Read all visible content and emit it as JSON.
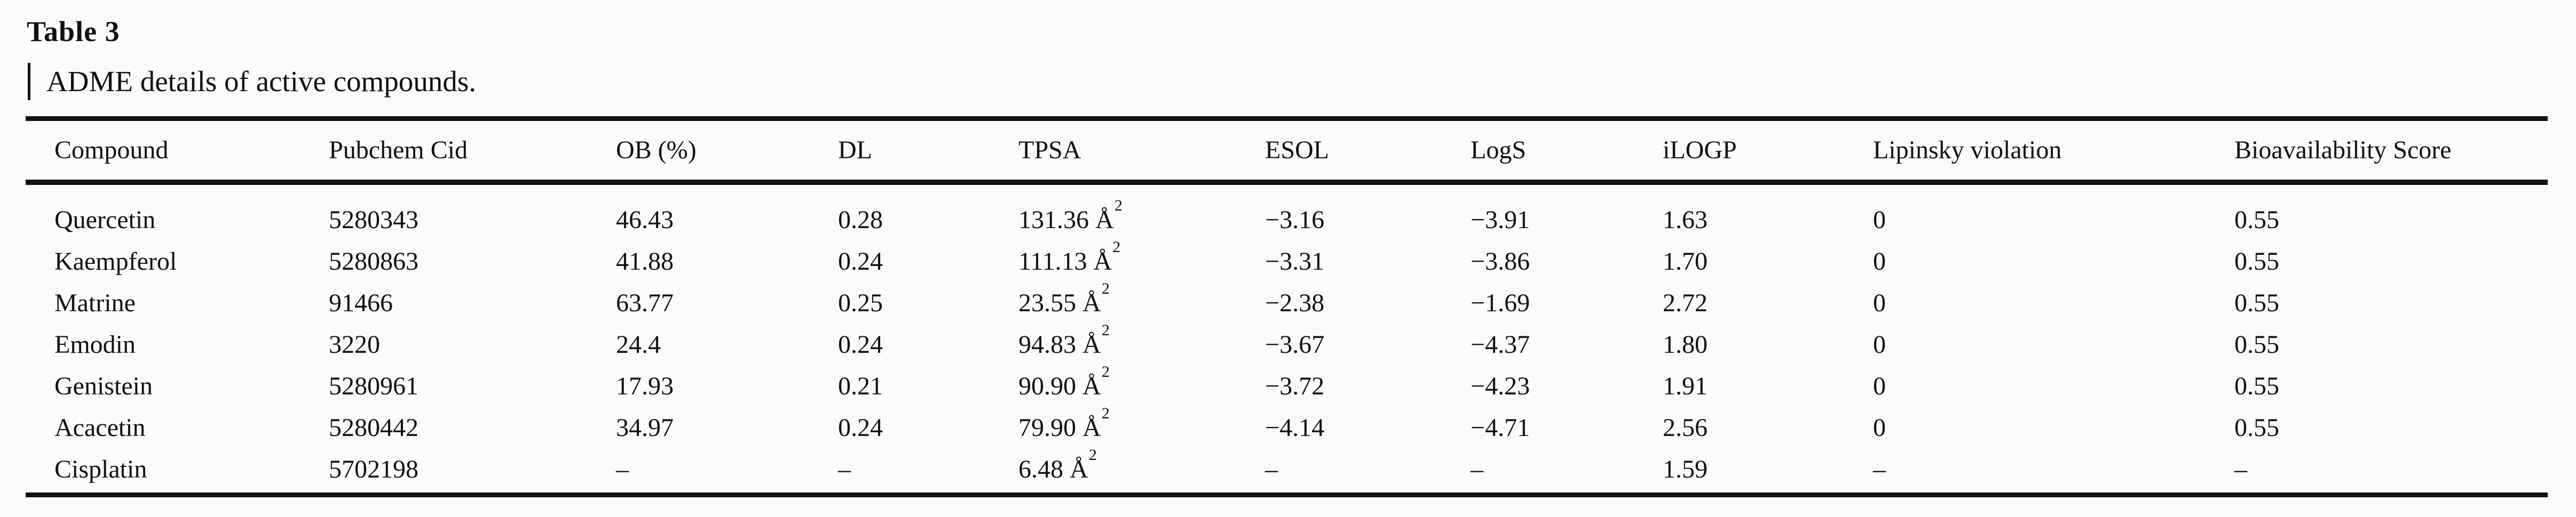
{
  "table": {
    "label": "Table 3",
    "caption": "ADME details of active compounds.",
    "columns": [
      {
        "key": "compound",
        "label": "Compound"
      },
      {
        "key": "pubchem_cid",
        "label": "Pubchem Cid"
      },
      {
        "key": "ob_percent",
        "label": "OB (%)"
      },
      {
        "key": "dl",
        "label": "DL"
      },
      {
        "key": "tpsa",
        "label": "TPSA"
      },
      {
        "key": "esol",
        "label": "ESOL"
      },
      {
        "key": "logs",
        "label": "LogS"
      },
      {
        "key": "ilogp",
        "label": "iLOGP"
      },
      {
        "key": "lipinsky_violation",
        "label": "Lipinsky violation"
      },
      {
        "key": "bioavailability_score",
        "label": "Bioavailability Score"
      }
    ],
    "tpsa_unit_note": "square angstrom shown as Å with superscript 2",
    "rows": [
      [
        "Quercetin",
        "5280343",
        "46.43",
        "0.28",
        {
          "text": "131.36 Å",
          "sup": "2"
        },
        "−3.16",
        "−3.91",
        "1.63",
        "0",
        "0.55"
      ],
      [
        "Kaempferol",
        "5280863",
        "41.88",
        "0.24",
        {
          "text": "111.13 Å",
          "sup": "2"
        },
        "−3.31",
        "−3.86",
        "1.70",
        "0",
        "0.55"
      ],
      [
        "Matrine",
        "91466",
        "63.77",
        "0.25",
        {
          "text": "23.55 Å",
          "sup": "2"
        },
        "−2.38",
        "−1.69",
        "2.72",
        "0",
        "0.55"
      ],
      [
        "Emodin",
        "3220",
        "24.4",
        "0.24",
        {
          "text": "94.83 Å",
          "sup": "2"
        },
        "−3.67",
        "−4.37",
        "1.80",
        "0",
        "0.55"
      ],
      [
        "Genistein",
        "5280961",
        "17.93",
        "0.21",
        {
          "text": "90.90 Å",
          "sup": "2"
        },
        "−3.72",
        "−4.23",
        "1.91",
        "0",
        "0.55"
      ],
      [
        "Acacetin",
        "5280442",
        "34.97",
        "0.24",
        {
          "text": "79.90 Å",
          "sup": "2"
        },
        "−4.14",
        "−4.71",
        "2.56",
        "0",
        "0.55"
      ],
      [
        "Cisplatin",
        "5702198",
        "–",
        "–",
        {
          "text": "6.48 Å",
          "sup": "2"
        },
        "–",
        "–",
        "1.59",
        "–",
        "–"
      ]
    ],
    "colors": {
      "text": "#111111",
      "background": "#fbfbf9",
      "rule": "#111111"
    }
  }
}
